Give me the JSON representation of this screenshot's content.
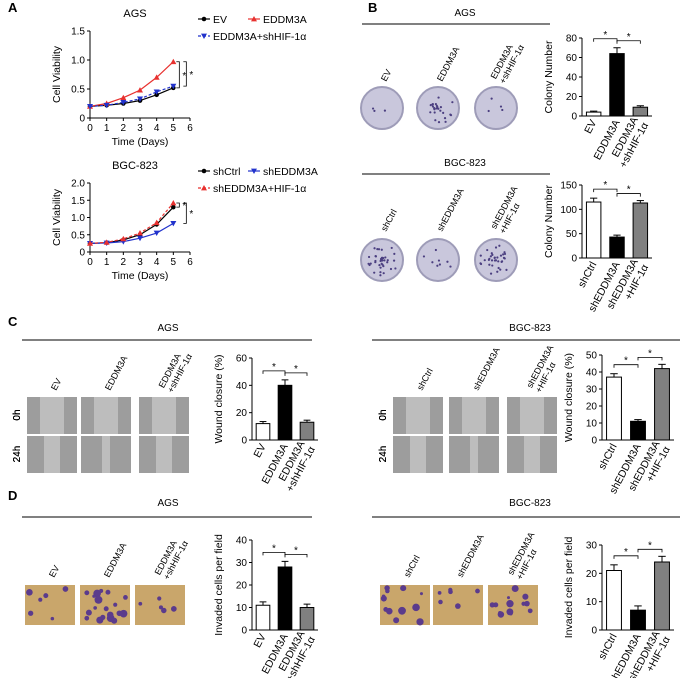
{
  "panel_labels": [
    "A",
    "B",
    "C",
    "D"
  ],
  "image_groups": [
    {
      "title": "AGS",
      "columns": [
        "EV",
        "EDDM3A",
        "EDDM3A\n+shHIF-1α"
      ]
    },
    {
      "title": "BGC-823",
      "columns": [
        "shCtrl",
        "shEDDM3A",
        "shEDDM3A\n+HIF-1α"
      ]
    },
    {
      "title": "AGS",
      "columns": [
        "EV",
        "EDDM3A",
        "EDDM3A\n+shHIF-1α"
      ],
      "rows": [
        "0h",
        "24h"
      ]
    },
    {
      "title": "BGC-823",
      "columns": [
        "shCtrl",
        "shEDDM3A",
        "shEDDM3A\n+HIF-1α"
      ],
      "rows": [
        "0h",
        "24h"
      ]
    },
    {
      "title": "AGS",
      "columns": [
        "EV",
        "EDDM3A",
        "EDDM3A\n+shHIF-1α"
      ]
    },
    {
      "title": "BGC-823",
      "columns": [
        "shCtrl",
        "shEDDM3A",
        "shEDDM3A\n+HIF-1α"
      ]
    }
  ],
  "chart_data": [
    {
      "type": "line",
      "title": "AGS",
      "xlabel": "Time (Days)",
      "ylabel": "Cell Viability",
      "x": [
        0,
        1,
        2,
        3,
        4,
        5
      ],
      "xlim": [
        0,
        6
      ],
      "xticks": [
        0,
        1,
        2,
        3,
        4,
        5,
        6
      ],
      "ylim": [
        0,
        1.5
      ],
      "yticks": [
        0,
        0.5,
        {
          "value": 1,
          "label": "1.0"
        },
        1.5
      ],
      "legend": "right",
      "series": [
        {
          "name": "EV",
          "color": "#000000",
          "marker": "circle",
          "values": [
            0.2,
            0.22,
            0.25,
            0.3,
            0.4,
            0.52
          ]
        },
        {
          "name": "EDDM3A",
          "color": "#e8312f",
          "marker": "triangle",
          "values": [
            0.2,
            0.25,
            0.35,
            0.48,
            0.7,
            0.97
          ]
        },
        {
          "name": "EDDM3A+shHIF-1α",
          "color": "#2233cc",
          "marker": "triangle-down",
          "dash": true,
          "values": [
            0.2,
            0.22,
            0.27,
            0.33,
            0.45,
            0.55
          ]
        }
      ],
      "annotations": [
        "*",
        "*"
      ]
    },
    {
      "type": "line",
      "title": "BGC-823",
      "xlabel": "Time (Days)",
      "ylabel": "Cell Viability",
      "x": [
        0,
        1,
        2,
        3,
        4,
        5
      ],
      "xlim": [
        0,
        6
      ],
      "xticks": [
        0,
        1,
        2,
        3,
        4,
        5,
        6
      ],
      "ylim": [
        0,
        2
      ],
      "yticks": [
        0,
        0.5,
        {
          "value": 1,
          "label": "1.0"
        },
        1.5,
        {
          "value": 2,
          "label": "2.0"
        }
      ],
      "legend": "right",
      "series": [
        {
          "name": "shCtrl",
          "color": "#000000",
          "marker": "circle",
          "values": [
            0.25,
            0.27,
            0.35,
            0.5,
            0.8,
            1.3
          ]
        },
        {
          "name": "shEDDM3A",
          "color": "#2233cc",
          "marker": "triangle-down",
          "values": [
            0.25,
            0.26,
            0.3,
            0.4,
            0.55,
            0.83
          ]
        },
        {
          "name": "shEDDM3A+HIF-1α",
          "color": "#e8312f",
          "marker": "triangle",
          "dash": true,
          "values": [
            0.25,
            0.28,
            0.38,
            0.55,
            0.85,
            1.42
          ]
        }
      ],
      "annotations": [
        "*",
        "*"
      ]
    },
    {
      "type": "bar",
      "ylabel": "Colony Number",
      "categories": [
        "EV",
        "EDDM3A",
        "EDDM3A\n+shHIF-1α"
      ],
      "values": [
        4,
        64,
        9
      ],
      "errors": [
        1,
        6,
        1.5
      ],
      "colors": [
        "#ffffff",
        "#000000",
        "#808080"
      ],
      "ylim": [
        0,
        80
      ],
      "yticks": [
        0,
        20,
        40,
        60,
        80
      ],
      "annotations": [
        "*",
        "*"
      ]
    },
    {
      "type": "bar",
      "ylabel": "Colony Number",
      "categories": [
        "shCtrl",
        "shEDDM3A",
        "shEDDM3A\n+HIF-1α"
      ],
      "values": [
        115,
        43,
        113
      ],
      "errors": [
        8,
        4,
        5
      ],
      "colors": [
        "#ffffff",
        "#000000",
        "#808080"
      ],
      "ylim": [
        0,
        150
      ],
      "yticks": [
        0,
        50,
        100,
        150
      ],
      "annotations": [
        "*",
        "*"
      ]
    },
    {
      "type": "bar",
      "ylabel": "Wound closure (%)",
      "categories": [
        "EV",
        "EDDM3A",
        "EDDM3A\n+shHIF-1α"
      ],
      "values": [
        12,
        40,
        13
      ],
      "errors": [
        1.5,
        4,
        1.5
      ],
      "colors": [
        "#ffffff",
        "#000000",
        "#808080"
      ],
      "ylim": [
        0,
        60
      ],
      "yticks": [
        0,
        20,
        40,
        60
      ],
      "annotations": [
        "*",
        "*"
      ]
    },
    {
      "type": "bar",
      "ylabel": "Wound closure (%)",
      "categories": [
        "shCtrl",
        "shEDDM3A",
        "shEDDM3A\n+HIF-1α"
      ],
      "values": [
        37,
        11,
        42
      ],
      "errors": [
        2,
        1,
        2.5
      ],
      "colors": [
        "#ffffff",
        "#000000",
        "#808080"
      ],
      "ylim": [
        0,
        50
      ],
      "yticks": [
        0,
        10,
        20,
        30,
        40,
        50
      ],
      "annotations": [
        "*",
        "*"
      ]
    },
    {
      "type": "bar",
      "ylabel": "Invaded cells per field",
      "categories": [
        "EV",
        "EDDM3A",
        "EDDM3A\n+shHIF-1α"
      ],
      "values": [
        11,
        28,
        10
      ],
      "errors": [
        1.5,
        2.5,
        1.5
      ],
      "colors": [
        "#ffffff",
        "#000000",
        "#808080"
      ],
      "ylim": [
        0,
        40
      ],
      "yticks": [
        0,
        10,
        20,
        30,
        40
      ],
      "annotations": [
        "*",
        "*"
      ]
    },
    {
      "type": "bar",
      "ylabel": "Invaded cells per field",
      "categories": [
        "shCtrl",
        "shEDDM3A",
        "shEDDM3A\n+HIF-1α"
      ],
      "values": [
        21,
        7,
        24
      ],
      "errors": [
        2,
        1.5,
        2
      ],
      "colors": [
        "#ffffff",
        "#000000",
        "#808080"
      ],
      "ylim": [
        0,
        30
      ],
      "yticks": [
        0,
        10,
        20,
        30
      ],
      "annotations": [
        "*",
        "*"
      ]
    }
  ]
}
